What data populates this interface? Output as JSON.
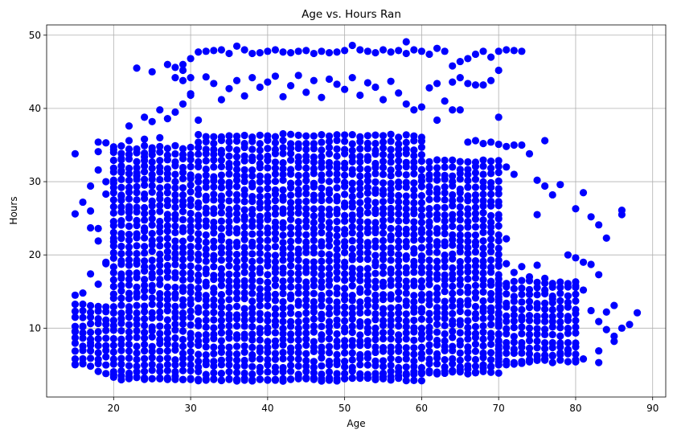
{
  "chart_data": {
    "type": "scatter",
    "title": "Age vs. Hours Ran",
    "xlabel": "Age",
    "ylabel": "Hours",
    "xlim": [
      11.3,
      91.7
    ],
    "ylim": [
      0.6,
      51.4
    ],
    "xticks": [
      20,
      30,
      40,
      50,
      60,
      70,
      80,
      90
    ],
    "yticks": [
      10,
      20,
      30,
      40,
      50
    ],
    "grid": true,
    "marker_color": "#0000ff",
    "series": [
      {
        "points": [
          [
            15,
            33.8
          ],
          [
            15,
            25.6
          ],
          [
            16,
            27.2
          ],
          [
            17,
            29.4
          ],
          [
            17,
            26.0
          ],
          [
            17,
            23.7
          ],
          [
            18,
            35.4
          ],
          [
            18,
            34.1
          ],
          [
            18,
            31.6
          ],
          [
            18,
            23.6
          ],
          [
            18,
            21.9
          ],
          [
            19,
            35.3
          ],
          [
            19,
            30.0
          ],
          [
            19,
            28.3
          ],
          [
            19,
            18.8
          ],
          [
            20,
            34.4
          ],
          [
            20,
            29.8
          ],
          [
            21,
            33.0
          ],
          [
            21,
            31.5
          ],
          [
            22,
            37.6
          ],
          [
            22,
            35.6
          ],
          [
            23,
            45.5
          ],
          [
            24,
            38.8
          ],
          [
            24,
            35.8
          ],
          [
            25,
            45.0
          ],
          [
            25,
            38.2
          ],
          [
            26,
            39.8
          ],
          [
            27,
            46.0
          ],
          [
            28,
            45.6
          ],
          [
            28,
            44.2
          ],
          [
            29,
            46.0
          ],
          [
            29,
            45.2
          ],
          [
            29,
            43.8
          ],
          [
            30,
            46.8
          ],
          [
            30,
            44.2
          ],
          [
            30,
            42.0
          ],
          [
            31,
            47.7
          ],
          [
            32,
            47.8
          ],
          [
            33,
            47.9
          ],
          [
            34,
            48.0
          ],
          [
            35,
            47.5
          ],
          [
            36,
            48.5
          ],
          [
            37,
            48.0
          ],
          [
            38,
            47.5
          ],
          [
            39,
            47.6
          ],
          [
            40,
            47.8
          ],
          [
            41,
            48.0
          ],
          [
            42,
            47.7
          ],
          [
            43,
            47.6
          ],
          [
            44,
            47.8
          ],
          [
            45,
            47.9
          ],
          [
            46,
            47.5
          ],
          [
            47,
            47.8
          ],
          [
            48,
            47.6
          ],
          [
            49,
            47.7
          ],
          [
            50,
            47.9
          ],
          [
            51,
            48.6
          ],
          [
            52,
            48.0
          ],
          [
            53,
            47.8
          ],
          [
            54,
            47.6
          ],
          [
            55,
            48.0
          ],
          [
            56,
            47.7
          ],
          [
            57,
            47.9
          ],
          [
            58,
            49.1
          ],
          [
            58,
            47.5
          ],
          [
            59,
            48.0
          ],
          [
            60,
            47.8
          ],
          [
            61,
            47.4
          ],
          [
            62,
            48.2
          ],
          [
            63,
            47.8
          ],
          [
            64,
            45.8
          ],
          [
            65,
            46.4
          ],
          [
            66,
            46.8
          ],
          [
            67,
            47.4
          ],
          [
            68,
            47.8
          ],
          [
            69,
            47.0
          ],
          [
            70,
            47.8
          ],
          [
            71,
            48.0
          ],
          [
            72,
            47.9
          ],
          [
            73,
            47.8
          ],
          [
            62,
            38.4
          ],
          [
            64,
            39.8
          ],
          [
            65,
            39.8
          ],
          [
            66,
            35.4
          ],
          [
            67,
            35.6
          ],
          [
            68,
            35.2
          ],
          [
            69,
            35.4
          ],
          [
            70,
            38.8
          ],
          [
            70,
            35.1
          ],
          [
            71,
            34.8
          ],
          [
            71,
            32.0
          ],
          [
            71,
            22.2
          ],
          [
            72,
            35.0
          ],
          [
            72,
            31.0
          ],
          [
            73,
            35.0
          ],
          [
            74,
            33.8
          ],
          [
            75,
            30.2
          ],
          [
            75,
            25.5
          ],
          [
            76,
            35.6
          ],
          [
            76,
            29.4
          ],
          [
            77,
            28.2
          ],
          [
            78,
            29.6
          ],
          [
            79,
            20.0
          ],
          [
            80,
            26.3
          ],
          [
            80,
            19.6
          ],
          [
            81,
            28.5
          ],
          [
            81,
            19.0
          ],
          [
            82,
            25.2
          ],
          [
            82,
            18.7
          ],
          [
            83,
            24.1
          ],
          [
            83,
            17.3
          ],
          [
            84,
            22.3
          ],
          [
            85,
            13.1
          ],
          [
            84,
            12.2
          ],
          [
            86,
            26.1
          ],
          [
            86,
            25.5
          ],
          [
            86,
            10.0
          ],
          [
            87,
            10.5
          ],
          [
            88,
            12.1
          ],
          [
            80,
            15.8
          ],
          [
            81,
            15.2
          ],
          [
            82,
            12.4
          ],
          [
            83,
            10.9
          ],
          [
            83,
            6.9
          ],
          [
            83,
            5.3
          ],
          [
            84,
            9.8
          ],
          [
            85,
            8.9
          ],
          [
            85,
            8.2
          ],
          [
            81,
            5.8
          ],
          [
            80,
            5.4
          ],
          [
            78,
            12.8
          ],
          [
            77,
            14.0
          ],
          [
            76,
            16.8
          ],
          [
            75,
            18.6
          ],
          [
            74,
            17.0
          ],
          [
            73,
            18.4
          ],
          [
            72,
            17.6
          ],
          [
            71,
            18.8
          ],
          [
            70,
            18.6
          ],
          [
            15,
            14.5
          ],
          [
            15,
            9.5
          ],
          [
            15,
            5.0
          ],
          [
            16,
            14.8
          ],
          [
            16,
            10.2
          ],
          [
            16,
            5.2
          ],
          [
            17,
            17.4
          ],
          [
            17,
            8.0
          ],
          [
            18,
            16.0
          ],
          [
            18,
            4.1
          ],
          [
            19,
            19.0
          ],
          [
            19,
            3.8
          ],
          [
            20,
            21.8
          ],
          [
            20,
            3.6
          ],
          [
            21,
            28.0
          ],
          [
            21,
            3.5
          ],
          [
            22,
            26.2
          ],
          [
            22,
            3.4
          ],
          [
            23,
            30.8
          ],
          [
            23,
            3.3
          ],
          [
            24,
            33.4
          ],
          [
            24,
            3.2
          ],
          [
            25,
            34.2
          ],
          [
            25,
            3.1
          ],
          [
            26,
            36.0
          ],
          [
            26,
            3.1
          ],
          [
            27,
            38.6
          ],
          [
            27,
            3.0
          ],
          [
            28,
            39.5
          ],
          [
            28,
            3.0
          ],
          [
            29,
            40.6
          ],
          [
            29,
            3.0
          ],
          [
            30,
            41.8
          ],
          [
            30,
            3.0
          ],
          [
            31,
            38.4
          ],
          [
            32,
            44.3
          ],
          [
            33,
            43.4
          ],
          [
            34,
            41.2
          ],
          [
            35,
            42.7
          ],
          [
            36,
            43.8
          ],
          [
            37,
            41.7
          ],
          [
            38,
            44.2
          ],
          [
            39,
            42.9
          ],
          [
            40,
            43.6
          ],
          [
            41,
            44.4
          ],
          [
            42,
            41.6
          ],
          [
            43,
            43.1
          ],
          [
            44,
            44.5
          ],
          [
            45,
            42.2
          ],
          [
            46,
            43.8
          ],
          [
            47,
            41.5
          ],
          [
            48,
            44.0
          ],
          [
            49,
            43.3
          ],
          [
            50,
            42.6
          ],
          [
            51,
            44.2
          ],
          [
            52,
            41.8
          ],
          [
            53,
            43.5
          ],
          [
            54,
            42.9
          ],
          [
            55,
            41.2
          ],
          [
            56,
            43.7
          ],
          [
            57,
            42.1
          ],
          [
            58,
            40.6
          ],
          [
            59,
            39.8
          ],
          [
            60,
            40.2
          ],
          [
            61,
            42.8
          ],
          [
            62,
            43.4
          ],
          [
            63,
            41.0
          ],
          [
            64,
            43.6
          ],
          [
            65,
            44.2
          ],
          [
            66,
            43.4
          ],
          [
            67,
            43.2
          ],
          [
            68,
            43.2
          ],
          [
            69,
            43.8
          ],
          [
            70,
            45.2
          ],
          [
            31,
            3.0
          ],
          [
            32,
            2.9
          ],
          [
            33,
            3.0
          ],
          [
            34,
            2.9
          ],
          [
            35,
            3.0
          ],
          [
            36,
            3.0
          ],
          [
            37,
            2.9
          ],
          [
            38,
            2.8
          ],
          [
            39,
            3.0
          ],
          [
            40,
            2.9
          ],
          [
            41,
            3.0
          ],
          [
            42,
            3.1
          ],
          [
            43,
            3.0
          ],
          [
            44,
            3.1
          ],
          [
            45,
            3.1
          ],
          [
            46,
            3.0
          ],
          [
            47,
            3.1
          ],
          [
            48,
            3.2
          ],
          [
            49,
            3.1
          ],
          [
            50,
            3.1
          ],
          [
            51,
            3.2
          ],
          [
            52,
            3.3
          ],
          [
            53,
            3.2
          ],
          [
            54,
            3.3
          ],
          [
            55,
            3.4
          ],
          [
            56,
            3.4
          ],
          [
            57,
            3.5
          ],
          [
            58,
            3.6
          ],
          [
            59,
            3.7
          ],
          [
            60,
            3.8
          ],
          [
            61,
            3.9
          ],
          [
            62,
            4.0
          ],
          [
            63,
            4.1
          ],
          [
            64,
            4.2
          ],
          [
            65,
            4.3
          ],
          [
            66,
            4.4
          ],
          [
            67,
            3.9
          ],
          [
            68,
            4.6
          ],
          [
            69,
            4.8
          ],
          [
            70,
            5.0
          ],
          [
            71,
            5.0
          ],
          [
            72,
            5.1
          ],
          [
            73,
            5.2
          ],
          [
            74,
            5.4
          ],
          [
            75,
            5.6
          ],
          [
            76,
            5.8
          ],
          [
            77,
            6.2
          ],
          [
            78,
            6.6
          ],
          [
            79,
            7.0
          ]
        ]
      }
    ],
    "dense_regions": [
      {
        "age_min": 15,
        "age_max": 19,
        "hours_min": 5.0,
        "hours_max": 14.0
      },
      {
        "age_min": 20,
        "age_max": 30,
        "hours_min": 3.2,
        "hours_max": 35.0
      },
      {
        "age_min": 31,
        "age_max": 60,
        "hours_min": 3.0,
        "hours_max": 36.5
      },
      {
        "age_min": 61,
        "age_max": 70,
        "hours_min": 4.0,
        "hours_max": 33.5
      },
      {
        "age_min": 70,
        "age_max": 80,
        "hours_min": 5.5,
        "hours_max": 17.0
      }
    ]
  }
}
